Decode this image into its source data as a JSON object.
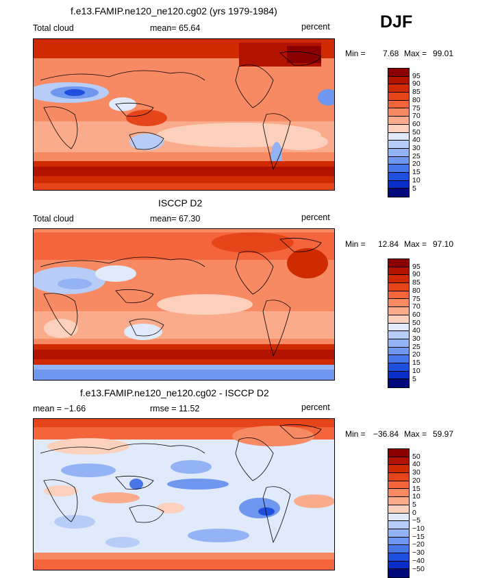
{
  "season": "DJF",
  "panels": [
    {
      "title": "f.e13.FAMIP.ne120_ne120.cg02 (yrs 1979-1984)",
      "left_label": "Total cloud",
      "center_label": "mean=  65.64",
      "right_label": "percent",
      "min_label": "Min =",
      "min_value": "7.68",
      "max_label": "Max =",
      "max_value": "99.01",
      "colorbar_labels": [
        "95",
        "90",
        "85",
        "80",
        "75",
        "70",
        "60",
        "50",
        "40",
        "30",
        "25",
        "20",
        "15",
        "10",
        "5"
      ],
      "colorbar_colors": [
        "#8a0000",
        "#b21200",
        "#cf2a00",
        "#e64519",
        "#f4653c",
        "#f78a63",
        "#f9ab8c",
        "#fbd1be",
        "#e0eafb",
        "#b7cdf8",
        "#94b3f4",
        "#6f97ef",
        "#4776e8",
        "#1f4fdd",
        "#0a2fc9",
        "#000a7a"
      ]
    },
    {
      "title": "ISCCP D2",
      "left_label": "Total cloud",
      "center_label": "mean=  67.30",
      "right_label": "percent",
      "min_label": "Min =",
      "min_value": "12.84",
      "max_label": "Max =",
      "max_value": "97.10",
      "colorbar_labels": [
        "95",
        "90",
        "85",
        "80",
        "75",
        "70",
        "60",
        "50",
        "40",
        "30",
        "25",
        "20",
        "15",
        "10",
        "5"
      ],
      "colorbar_colors": [
        "#8a0000",
        "#b21200",
        "#cf2a00",
        "#e64519",
        "#f4653c",
        "#f78a63",
        "#f9ab8c",
        "#fbd1be",
        "#e0eafb",
        "#b7cdf8",
        "#94b3f4",
        "#6f97ef",
        "#4776e8",
        "#1f4fdd",
        "#0a2fc9",
        "#000a7a"
      ]
    },
    {
      "title": "f.e13.FAMIP.ne120_ne120.cg02 - ISCCP D2",
      "left_label": "mean =   −1.66",
      "center_label": "rmse =   11.52",
      "right_label": "percent",
      "min_label": "Min =",
      "min_value": "−36.84",
      "max_label": "Max =",
      "max_value": "59.97",
      "colorbar_labels": [
        "50",
        "40",
        "30",
        "20",
        "15",
        "10",
        "5",
        "0",
        "−5",
        "−10",
        "−15",
        "−20",
        "−30",
        "−40",
        "−50"
      ],
      "colorbar_colors": [
        "#8a0000",
        "#b21200",
        "#cf2a00",
        "#e64519",
        "#f4653c",
        "#f78a63",
        "#f9ab8c",
        "#fbd1be",
        "#e0eafb",
        "#b7cdf8",
        "#94b3f4",
        "#6f97ef",
        "#4776e8",
        "#1f4fdd",
        "#0a2fc9",
        "#000a7a"
      ]
    }
  ]
}
